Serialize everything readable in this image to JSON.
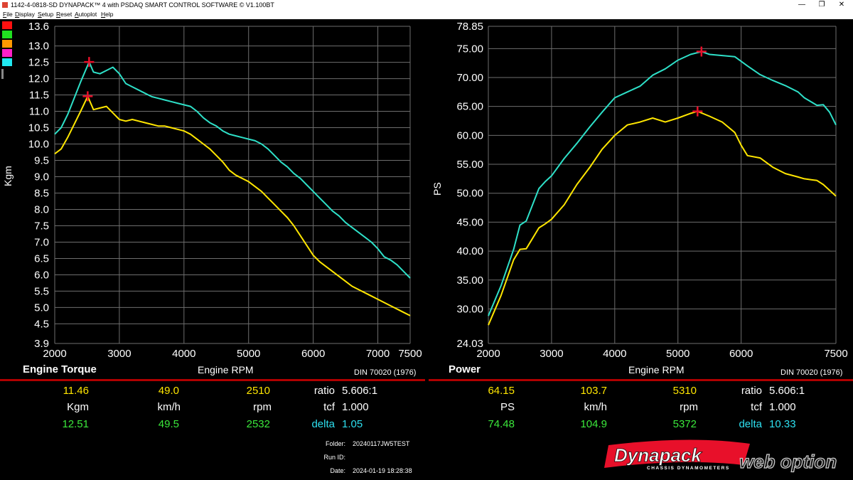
{
  "window": {
    "title": "1142-4-0818-SD DYNAPACK™ 4 with PSDAQ SMART CONTROL SOFTWARE © V1.100BT",
    "menu": [
      "File",
      "Display",
      "Setup",
      "Reset",
      "Autoplot",
      "Help"
    ],
    "min_glyph": "—",
    "max_glyph": "❐",
    "close_glyph": "✕"
  },
  "colors": {
    "yellow": "#ffe600",
    "cyan": "#2ee0c8",
    "green": "#3be83b",
    "red_marker": "#e8102a",
    "grid": "#6e6e6e",
    "divider": "#b00000",
    "swatches": [
      "#ff1010",
      "#20e020",
      "#ff9900",
      "#ff20c8",
      "#20e8f0"
    ]
  },
  "chart_data": [
    {
      "type": "line",
      "title": "Engine Torque",
      "xlabel": "Engine RPM",
      "ylabel": "Kgm",
      "note": "DIN 70020 (1976)",
      "xlim": [
        2000,
        7500
      ],
      "ylim": [
        3.9,
        13.6
      ],
      "x_ticks": [
        {
          "v": 2000,
          "label": "2000"
        },
        {
          "v": 3000,
          "label": "3000"
        },
        {
          "v": 4000,
          "label": "4000"
        },
        {
          "v": 5000,
          "label": "5000"
        },
        {
          "v": 6000,
          "label": "6000"
        },
        {
          "v": 7000,
          "label": "7000"
        },
        {
          "v": 7500,
          "label": "7500"
        }
      ],
      "y_ticks": [
        {
          "v": 3.9,
          "label": "3.9"
        },
        {
          "v": 4.5,
          "label": "4.5"
        },
        {
          "v": 5.0,
          "label": "5.0"
        },
        {
          "v": 5.5,
          "label": "5.5"
        },
        {
          "v": 6.0,
          "label": "6.0"
        },
        {
          "v": 6.5,
          "label": "6.5"
        },
        {
          "v": 7.0,
          "label": "7.0"
        },
        {
          "v": 7.5,
          "label": "7.5"
        },
        {
          "v": 8.0,
          "label": "8.0"
        },
        {
          "v": 8.5,
          "label": "8.5"
        },
        {
          "v": 9.0,
          "label": "9.0"
        },
        {
          "v": 9.5,
          "label": "9.5"
        },
        {
          "v": 10.0,
          "label": "10.0"
        },
        {
          "v": 10.5,
          "label": "10.5"
        },
        {
          "v": 11.0,
          "label": "11.0"
        },
        {
          "v": 11.5,
          "label": "11.5"
        },
        {
          "v": 12.0,
          "label": "12.0"
        },
        {
          "v": 12.5,
          "label": "12.5"
        },
        {
          "v": 13.0,
          "label": "13.0"
        },
        {
          "v": 13.6,
          "label": "13.6"
        }
      ],
      "series": [
        {
          "color": "#2ee0c8",
          "x": [
            2000,
            2100,
            2200,
            2300,
            2400,
            2532,
            2600,
            2700,
            2800,
            2900,
            3000,
            3100,
            3200,
            3300,
            3400,
            3500,
            3600,
            3700,
            3800,
            3900,
            4000,
            4100,
            4200,
            4300,
            4400,
            4500,
            4600,
            4700,
            4800,
            4900,
            5000,
            5100,
            5200,
            5300,
            5400,
            5500,
            5600,
            5700,
            5800,
            5900,
            6000,
            6100,
            6200,
            6300,
            6400,
            6500,
            6600,
            6700,
            6800,
            6900,
            7000,
            7100,
            7200,
            7300,
            7400,
            7500
          ],
          "y": [
            10.3,
            10.5,
            10.9,
            11.4,
            11.9,
            12.51,
            12.2,
            12.15,
            12.25,
            12.35,
            12.15,
            11.85,
            11.75,
            11.65,
            11.55,
            11.45,
            11.4,
            11.35,
            11.3,
            11.25,
            11.2,
            11.15,
            11.0,
            10.8,
            10.65,
            10.55,
            10.4,
            10.3,
            10.25,
            10.2,
            10.15,
            10.1,
            10.0,
            9.85,
            9.65,
            9.45,
            9.3,
            9.1,
            8.95,
            8.75,
            8.55,
            8.35,
            8.15,
            7.95,
            7.8,
            7.6,
            7.45,
            7.3,
            7.15,
            7.0,
            6.8,
            6.55,
            6.45,
            6.3,
            6.1,
            5.9
          ]
        },
        {
          "color": "#ffe600",
          "x": [
            2000,
            2100,
            2200,
            2300,
            2400,
            2510,
            2600,
            2700,
            2800,
            2900,
            3000,
            3100,
            3200,
            3300,
            3400,
            3500,
            3600,
            3700,
            3800,
            3900,
            4000,
            4100,
            4200,
            4300,
            4400,
            4500,
            4600,
            4700,
            4800,
            4900,
            5000,
            5100,
            5200,
            5300,
            5400,
            5500,
            5600,
            5700,
            5800,
            5900,
            6000,
            6100,
            6200,
            6300,
            6400,
            6500,
            6600,
            6700,
            6800,
            6900,
            7000,
            7100,
            7200,
            7300,
            7400,
            7500
          ],
          "y": [
            9.7,
            9.85,
            10.2,
            10.6,
            11.0,
            11.46,
            11.05,
            11.1,
            11.15,
            10.95,
            10.75,
            10.7,
            10.75,
            10.7,
            10.65,
            10.6,
            10.55,
            10.55,
            10.5,
            10.45,
            10.4,
            10.3,
            10.15,
            10.0,
            9.85,
            9.65,
            9.45,
            9.2,
            9.05,
            8.95,
            8.85,
            8.7,
            8.55,
            8.35,
            8.15,
            7.95,
            7.75,
            7.5,
            7.2,
            6.9,
            6.6,
            6.4,
            6.25,
            6.1,
            5.95,
            5.8,
            5.65,
            5.55,
            5.45,
            5.35,
            5.25,
            5.15,
            5.05,
            4.95,
            4.85,
            4.75
          ]
        }
      ],
      "peaks": [
        {
          "x": 2532,
          "y": 12.51
        },
        {
          "x": 2510,
          "y": 11.46
        }
      ]
    },
    {
      "type": "line",
      "title": "Power",
      "xlabel": "Engine RPM",
      "ylabel": "PS",
      "note": "DIN 70020 (1976)",
      "xlim": [
        2000,
        7500
      ],
      "ylim": [
        24.03,
        78.85
      ],
      "x_ticks": [
        {
          "v": 2000,
          "label": "2000"
        },
        {
          "v": 3000,
          "label": "3000"
        },
        {
          "v": 4000,
          "label": "4000"
        },
        {
          "v": 5000,
          "label": "5000"
        },
        {
          "v": 6000,
          "label": "6000"
        },
        {
          "v": 7500,
          "label": "7500"
        }
      ],
      "y_ticks": [
        {
          "v": 24.03,
          "label": "24.03"
        },
        {
          "v": 30.0,
          "label": "30.00"
        },
        {
          "v": 35.0,
          "label": "35.00"
        },
        {
          "v": 40.0,
          "label": "40.00"
        },
        {
          "v": 45.0,
          "label": "45.00"
        },
        {
          "v": 50.0,
          "label": "50.00"
        },
        {
          "v": 55.0,
          "label": "55.00"
        },
        {
          "v": 60.0,
          "label": "60.00"
        },
        {
          "v": 65.0,
          "label": "65.00"
        },
        {
          "v": 70.0,
          "label": "70.00"
        },
        {
          "v": 75.0,
          "label": "75.00"
        },
        {
          "v": 78.85,
          "label": "78.85"
        }
      ],
      "series": [
        {
          "color": "#2ee0c8",
          "x": [
            2000,
            2200,
            2400,
            2500,
            2600,
            2700,
            2800,
            2900,
            3000,
            3200,
            3400,
            3600,
            3800,
            4000,
            4200,
            4400,
            4600,
            4800,
            5000,
            5200,
            5372,
            5500,
            5700,
            5900,
            6100,
            6300,
            6500,
            6700,
            6900,
            7000,
            7200,
            7300,
            7400,
            7500
          ],
          "y": [
            28.8,
            34.0,
            40.3,
            44.5,
            45.2,
            48.0,
            50.8,
            52.0,
            53.0,
            56.0,
            58.6,
            61.4,
            64.0,
            66.5,
            67.5,
            68.5,
            70.4,
            71.5,
            73.0,
            74.0,
            74.48,
            74.0,
            73.8,
            73.6,
            72.0,
            70.5,
            69.5,
            68.6,
            67.5,
            66.5,
            65.2,
            65.3,
            64.0,
            61.8
          ]
        },
        {
          "color": "#ffe600",
          "x": [
            2000,
            2200,
            2400,
            2500,
            2600,
            2700,
            2800,
            2900,
            3000,
            3200,
            3400,
            3600,
            3800,
            4000,
            4200,
            4400,
            4600,
            4800,
            5000,
            5200,
            5310,
            5500,
            5700,
            5900,
            6000,
            6100,
            6300,
            6500,
            6700,
            6900,
            7000,
            7200,
            7300,
            7400,
            7500
          ],
          "y": [
            27.2,
            32.3,
            38.5,
            40.3,
            40.4,
            42.2,
            44.0,
            44.7,
            45.5,
            48.0,
            51.5,
            54.4,
            57.6,
            60.0,
            61.8,
            62.3,
            63.0,
            62.3,
            63.0,
            63.8,
            64.15,
            63.3,
            62.3,
            60.5,
            58.3,
            56.5,
            56.1,
            54.5,
            53.4,
            52.8,
            52.5,
            52.2,
            51.5,
            50.5,
            49.5
          ]
        }
      ],
      "peaks": [
        {
          "x": 5372,
          "y": 74.48
        },
        {
          "x": 5310,
          "y": 64.15
        }
      ]
    }
  ],
  "readouts": {
    "left": {
      "row1": {
        "a": "11.46",
        "b": "49.0",
        "c": "2510",
        "label": "ratio",
        "value": "5.606:1"
      },
      "row2": {
        "a": "Kgm",
        "b": "km/h",
        "c": "rpm",
        "label": "tcf",
        "value": "1.000"
      },
      "row3": {
        "a": "12.51",
        "b": "49.5",
        "c": "2532",
        "label": "delta",
        "value": "1.05"
      }
    },
    "right": {
      "row1": {
        "a": "64.15",
        "b": "103.7",
        "c": "5310",
        "label": "ratio",
        "value": "5.606:1"
      },
      "row2": {
        "a": "PS",
        "b": "km/h",
        "c": "rpm",
        "label": "tcf",
        "value": "1.000"
      },
      "row3": {
        "a": "74.48",
        "b": "104.9",
        "c": "5372",
        "label": "delta",
        "value": "10.33"
      }
    }
  },
  "info": {
    "folder_label": "Folder:",
    "folder_value": "20240117JW5TEST",
    "runid_label": "Run ID:",
    "runid_value": "",
    "date_label": "Date:",
    "date_value": "2024-01-19 18:28:38"
  },
  "logo": {
    "brand": "Dynapack",
    "sub": "CHASSIS DYNAMOMETERS",
    "watermark": "web option"
  }
}
